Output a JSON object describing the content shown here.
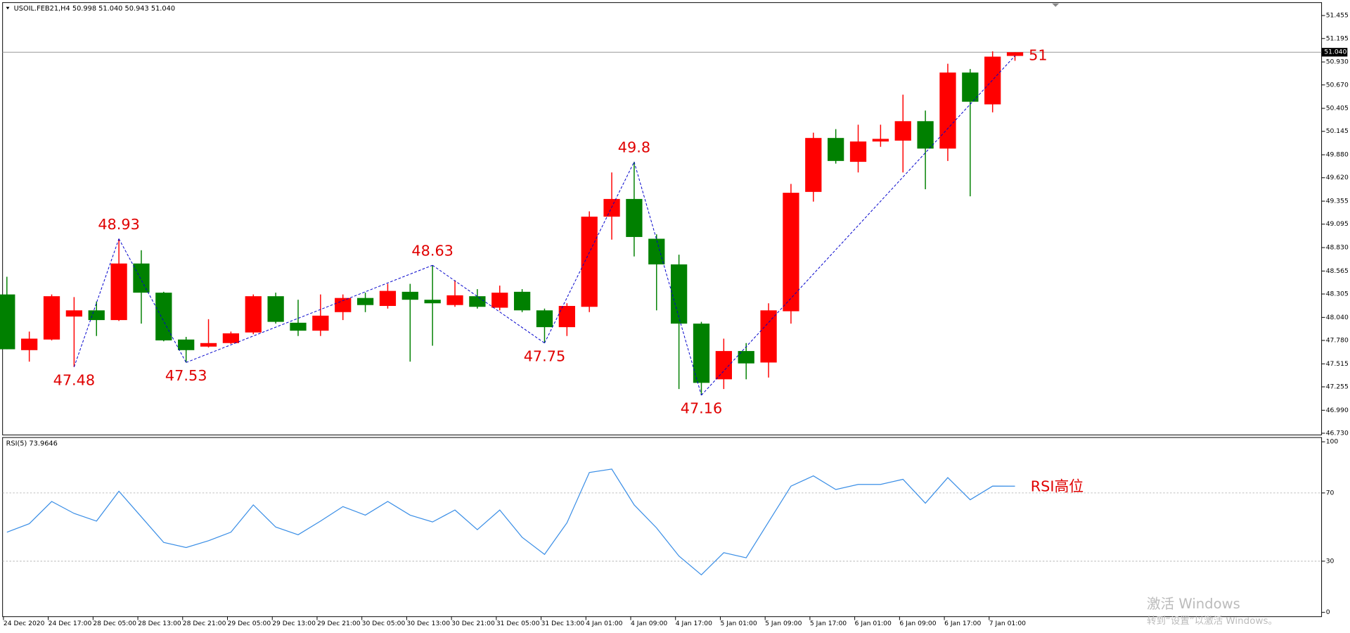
{
  "chart_data": [
    {
      "type": "candlestick",
      "title": "USOIL.FEB21,H4  50.998 51.040 50.943 51.040",
      "up_color": "#ff0000",
      "down_color": "#008000",
      "categories": [
        "24 Dec 2020",
        null,
        "24 Dec 17:00",
        null,
        "28 Dec 05:00",
        null,
        "28 Dec 13:00",
        null,
        "28 Dec 21:00",
        null,
        "29 Dec 05:00",
        null,
        "29 Dec 13:00",
        null,
        "29 Dec 21:00",
        null,
        "30 Dec 05:00",
        null,
        "30 Dec 13:00",
        null,
        "30 Dec 21:00",
        null,
        "31 Dec 05:00",
        null,
        "31 Dec 13:00",
        null,
        "4 Jan 01:00",
        null,
        "4 Jan 09:00",
        null,
        "4 Jan 17:00",
        null,
        "5 Jan 01:00",
        null,
        "5 Jan 09:00",
        null,
        "5 Jan 17:00",
        null,
        "6 Jan 01:00",
        null,
        "6 Jan 09:00",
        null,
        "6 Jan 17:00",
        null,
        "7 Jan 01:00",
        null
      ],
      "open": [
        48.3,
        47.67,
        47.79,
        48.05,
        48.12,
        48.01,
        48.65,
        48.32,
        47.79,
        47.71,
        47.75,
        47.87,
        48.28,
        47.98,
        47.89,
        48.1,
        48.26,
        48.17,
        48.33,
        48.24,
        48.18,
        48.28,
        48.15,
        48.33,
        48.12,
        47.93,
        48.16,
        49.18,
        49.38,
        48.93,
        48.64,
        47.97,
        47.34,
        47.66,
        47.53,
        48.11,
        49.46,
        50.07,
        49.8,
        50.03,
        50.04,
        50.26,
        49.95,
        50.81,
        50.45,
        50.998
      ],
      "high": [
        48.5,
        47.88,
        48.3,
        48.27,
        48.22,
        48.93,
        48.8,
        48.33,
        47.82,
        48.02,
        47.88,
        48.3,
        48.32,
        48.24,
        48.3,
        48.3,
        48.32,
        48.42,
        48.42,
        48.63,
        48.46,
        48.36,
        48.4,
        48.36,
        48.14,
        48.2,
        49.24,
        49.68,
        49.8,
        48.98,
        48.75,
        47.99,
        47.8,
        47.75,
        48.2,
        49.55,
        50.13,
        50.17,
        50.22,
        50.22,
        50.56,
        50.38,
        50.91,
        50.85,
        51.05,
        51.04
      ],
      "low": [
        47.68,
        47.54,
        47.78,
        47.48,
        47.83,
        48.0,
        47.97,
        47.77,
        47.53,
        47.7,
        47.74,
        47.85,
        47.97,
        47.83,
        47.83,
        48.01,
        48.1,
        48.14,
        47.54,
        47.72,
        48.16,
        48.14,
        48.12,
        48.1,
        47.75,
        47.83,
        48.1,
        48.92,
        48.73,
        48.12,
        47.23,
        47.16,
        47.23,
        47.34,
        47.36,
        47.97,
        49.35,
        49.78,
        49.68,
        49.97,
        49.68,
        49.49,
        49.81,
        49.41,
        50.36,
        50.943
      ],
      "close": [
        47.68,
        47.8,
        48.28,
        48.12,
        48.01,
        48.65,
        48.32,
        47.78,
        47.67,
        47.75,
        47.86,
        48.28,
        47.99,
        47.89,
        48.06,
        48.26,
        48.18,
        48.34,
        48.24,
        48.2,
        48.29,
        48.16,
        48.32,
        48.12,
        47.93,
        48.17,
        49.18,
        49.38,
        48.95,
        48.64,
        47.97,
        47.3,
        47.66,
        47.52,
        48.12,
        49.45,
        50.07,
        49.81,
        50.03,
        50.06,
        50.26,
        49.95,
        50.81,
        50.48,
        50.99,
        51.04
      ],
      "zigzag": {
        "color": "#0000cc",
        "label_color": "#e00000",
        "values": [
          null,
          null,
          null,
          47.48,
          null,
          48.93,
          null,
          null,
          47.53,
          null,
          null,
          null,
          null,
          null,
          null,
          null,
          null,
          null,
          null,
          48.63,
          null,
          null,
          null,
          null,
          47.75,
          null,
          null,
          null,
          49.8,
          null,
          null,
          47.16,
          null,
          null,
          null,
          null,
          null,
          null,
          null,
          null,
          null,
          null,
          null,
          null,
          null,
          51
        ]
      },
      "current_price": {
        "value": 51.04,
        "label": "51.040"
      },
      "ylim": [
        46.711,
        51.582
      ],
      "yticks": [
        51.455,
        51.195,
        {
          "value": 50.93,
          "label": "50.930"
        },
        {
          "value": 50.67,
          "label": "50.670"
        },
        50.405,
        50.145,
        {
          "value": 49.88,
          "label": "49.880"
        },
        {
          "value": 49.62,
          "label": "49.620"
        },
        49.355,
        49.095,
        {
          "value": 48.83,
          "label": "48.830"
        },
        48.565,
        48.305,
        {
          "value": 48.04,
          "label": "48.040"
        },
        {
          "value": 47.78,
          "label": "47.780"
        },
        47.515,
        47.255,
        {
          "value": 46.99,
          "label": "46.990"
        },
        {
          "value": 46.73,
          "label": "46.730"
        }
      ]
    },
    {
      "type": "line",
      "title": "RSI(5) 73.9646",
      "color": "#3a8ee6",
      "values": [
        47,
        52,
        65,
        58,
        53.5,
        71,
        56,
        41,
        38,
        42,
        47,
        63,
        50,
        45.5,
        53.5,
        62,
        57,
        65,
        57,
        53,
        60,
        48.5,
        60,
        44,
        34,
        52.5,
        82,
        84,
        63,
        49.5,
        33,
        22,
        35,
        32,
        53,
        74,
        80,
        72,
        75,
        75,
        78,
        64,
        79,
        66,
        74,
        73.9646
      ],
      "ylim": [
        -2.5,
        102.5
      ],
      "yticks": [
        0,
        30,
        70,
        100
      ],
      "levels": [
        30,
        70
      ],
      "annotation": "RSI高位"
    }
  ],
  "watermark": [
    "激活 Windows",
    "转到“设置”以激活 Windows。"
  ]
}
